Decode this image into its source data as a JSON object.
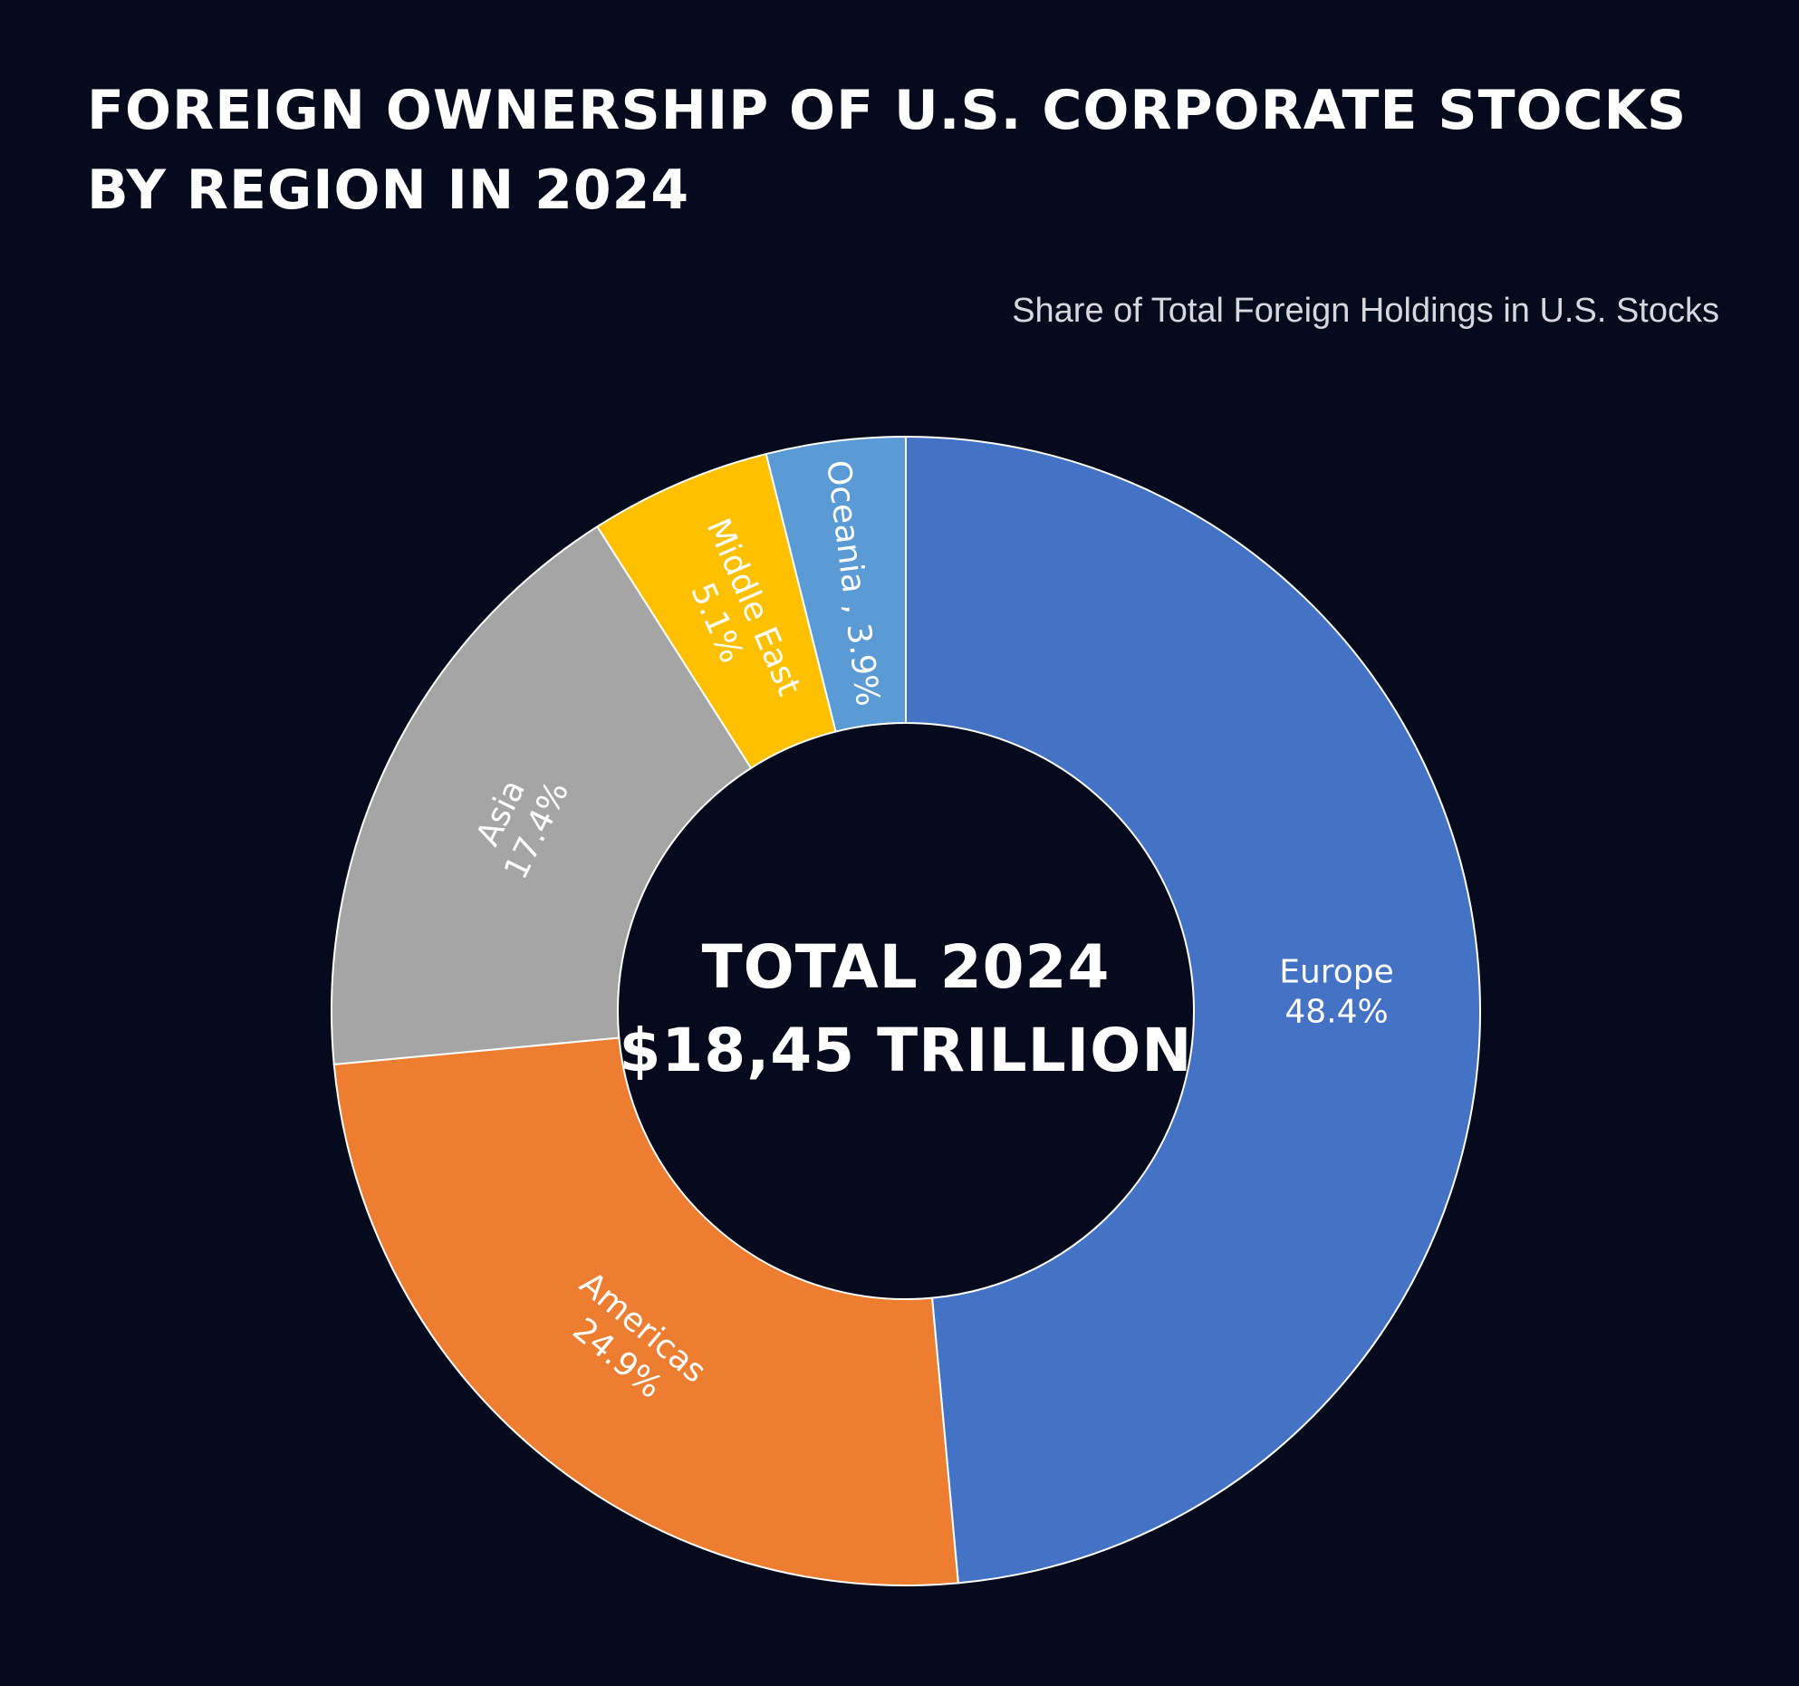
{
  "header": {
    "title_line1": "FOREIGN OWNERSHIP OF U.S. CORPORATE STOCKS",
    "title_line2": "BY REGION IN 2024",
    "subtitle": "Share of Total Foreign Holdings in U.S. Stocks"
  },
  "center": {
    "line1": "TOTAL 2024",
    "line2": "$18,45 TRILLION"
  },
  "chart_data": {
    "type": "pie",
    "title": "FOREIGN OWNERSHIP OF U.S. CORPORATE STOCKS BY REGION IN 2024",
    "subtitle": "Share of Total Foreign Holdings in U.S. Stocks",
    "donut": true,
    "slices": [
      {
        "label": "Europe",
        "value": 48.4,
        "display": "48.4%",
        "color": "#4472c4"
      },
      {
        "label": "Americas",
        "value": 24.9,
        "display": "24.9%",
        "color": "#ed7d31"
      },
      {
        "label": "Asia",
        "value": 17.4,
        "display": "17.4%",
        "color": "#a5a5a5"
      },
      {
        "label": "Middle East",
        "value": 5.1,
        "display": "5.1%",
        "color": "#ffc000"
      },
      {
        "label": "Oceania",
        "value": 3.9,
        "display": "3.9%",
        "color": "#5b9bd5",
        "label_text": "Oceania , 3.9%"
      }
    ],
    "slice_border_color": "#ffffff",
    "background_color": "#050a1c"
  }
}
